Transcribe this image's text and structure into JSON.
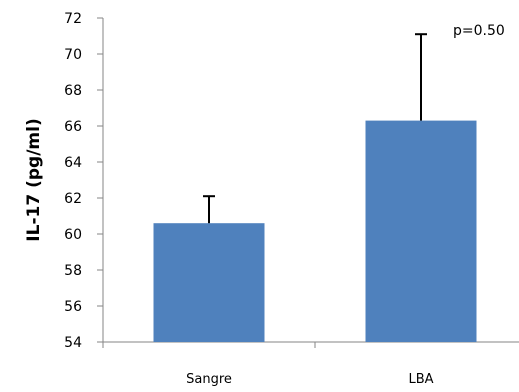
{
  "chart_data": {
    "type": "bar",
    "title": "",
    "xlabel": "",
    "ylabel": "IL-17 (pg/ml)",
    "categories": [
      "Sangre",
      "LBA"
    ],
    "values": [
      60.6,
      66.3
    ],
    "error_upper": [
      62.1,
      71.1
    ],
    "ylim": [
      54,
      72
    ],
    "yticks": [
      "54",
      "56",
      "58",
      "60",
      "62",
      "64",
      "66",
      "68",
      "70",
      "72"
    ],
    "annotation": "p=0.50",
    "grid": false,
    "legend": "none",
    "bar_color": "#4f81bd",
    "error_bar_color": "#000000"
  }
}
